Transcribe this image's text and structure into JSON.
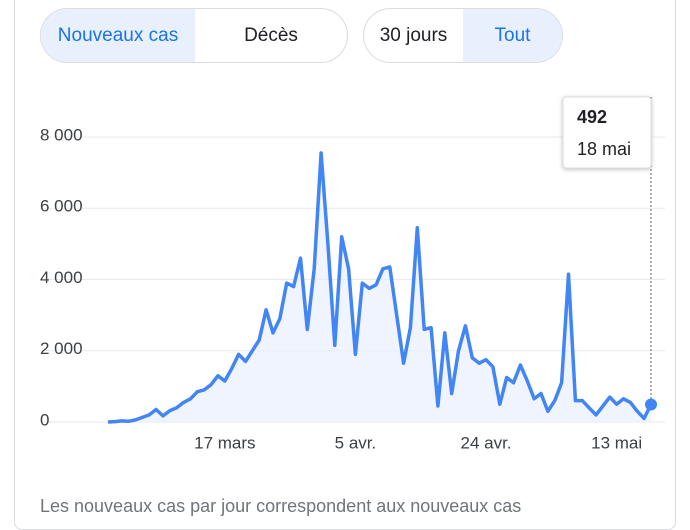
{
  "tabs": [
    "Nouveaux cas",
    "Décès"
  ],
  "ranges": [
    "30 jours",
    "Tout"
  ],
  "footnote": "Les nouveaux cas par jour correspondent aux nouveaux cas",
  "chart_data": {
    "type": "line",
    "color": "#4285f4",
    "grid": true,
    "ylim": [
      0,
      8000
    ],
    "yticks": [
      0,
      {
        "value": 2000,
        "label": "2 000"
      },
      {
        "value": 4000,
        "label": "4 000"
      },
      {
        "value": 6000,
        "label": "6 000"
      },
      {
        "value": 8000,
        "label": "8 000"
      }
    ],
    "categories": [
      null,
      null,
      null,
      null,
      null,
      null,
      null,
      null,
      null,
      null,
      null,
      null,
      null,
      null,
      null,
      null,
      null,
      "17 mars",
      null,
      null,
      null,
      null,
      null,
      null,
      null,
      null,
      null,
      null,
      null,
      null,
      null,
      null,
      null,
      null,
      null,
      null,
      "5 avr.",
      null,
      null,
      null,
      null,
      null,
      null,
      null,
      null,
      null,
      null,
      null,
      null,
      null,
      null,
      null,
      null,
      null,
      null,
      "24 avr.",
      null,
      null,
      null,
      null,
      null,
      null,
      null,
      null,
      null,
      null,
      null,
      null,
      null,
      null,
      null,
      null,
      null,
      null,
      "13 mai",
      null,
      null,
      null,
      null,
      "18 mai"
    ],
    "values": [
      0,
      10,
      30,
      20,
      60,
      130,
      200,
      350,
      170,
      320,
      400,
      550,
      650,
      850,
      900,
      1050,
      1300,
      1150,
      1500,
      1900,
      1700,
      2000,
      2300,
      3150,
      2500,
      2900,
      3900,
      3800,
      4600,
      2600,
      4300,
      7550,
      5000,
      2150,
      5200,
      4300,
      1900,
      3900,
      3750,
      3850,
      4300,
      4350,
      3000,
      1650,
      2650,
      5450,
      2600,
      2650,
      450,
      2500,
      800,
      2000,
      2700,
      1800,
      1650,
      1750,
      1550,
      500,
      1250,
      1100,
      1600,
      1150,
      650,
      800,
      300,
      600,
      1100,
      4150,
      600,
      600,
      400,
      200,
      450,
      700,
      500,
      650,
      550,
      300,
      100,
      492
    ]
  }
}
